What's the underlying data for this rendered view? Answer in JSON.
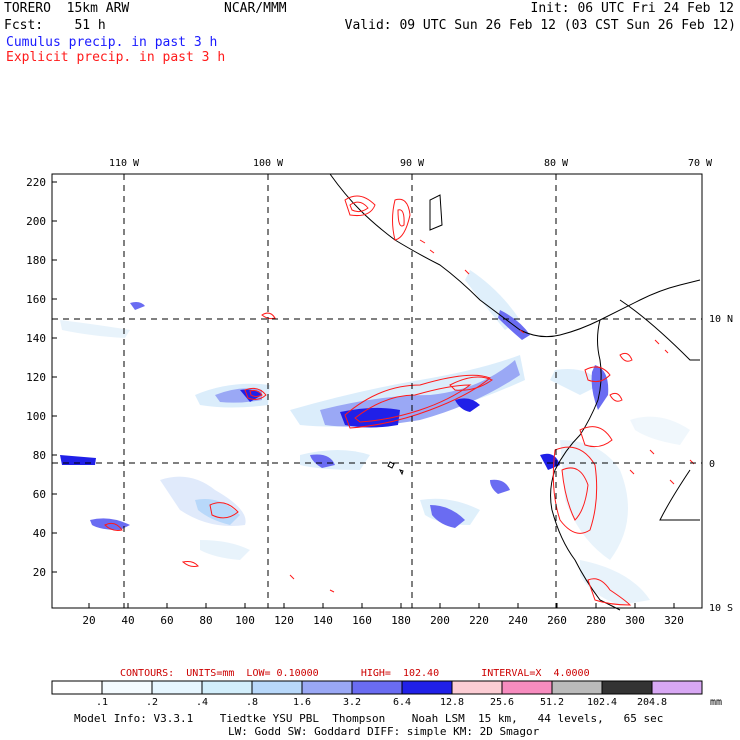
{
  "header": {
    "model": "TORERO  15km ARW",
    "org": "NCAR/MMM",
    "init": "Init: 06 UTC Fri 24 Feb 12",
    "fcst": "Fcst:    51 h",
    "valid": "Valid: 09 UTC Sun 26 Feb 12 (03 CST Sun 26 Feb 12)",
    "field1": "Cumulus precip. in past 3 h",
    "field2": "Explicit precip. in past 3 h"
  },
  "map": {
    "lon_labels": [
      "110 W",
      "100 W",
      "90 W",
      "80 W",
      "70 W"
    ],
    "lat_labels": [
      "10 N",
      "0",
      "10 S"
    ],
    "y_ticks": [
      "220",
      "200",
      "180",
      "160",
      "140",
      "120",
      "100",
      "80",
      "60",
      "40",
      "20"
    ],
    "x_ticks": [
      "20",
      "40",
      "60",
      "80",
      "100",
      "120",
      "140",
      "160",
      "180",
      "200",
      "220",
      "240",
      "260",
      "280",
      "300",
      "320"
    ]
  },
  "contours": {
    "text": "CONTOURS:  UNITS=mm  LOW= 0.10000       HIGH=  102.40       INTERVAL=X  4.0000"
  },
  "colorbar": {
    "labels": [
      ".1",
      ".2",
      ".4",
      ".8",
      "1.6",
      "3.2",
      "6.4",
      "12.8",
      "25.6",
      "51.2",
      "102.4",
      "204.8"
    ],
    "units": "mm",
    "colors": [
      "#ffffff",
      "#f4fbff",
      "#e6f6ff",
      "#d2eefb",
      "#b8d8fa",
      "#9aa8f5",
      "#6a6cf2",
      "#2020e8",
      "#fccdd4",
      "#f78cbf",
      "#bbbbbb",
      "#333333",
      "#d8a8f4"
    ]
  },
  "footer": {
    "line1": "Model Info: V3.3.1    Tiedtke YSU PBL  Thompson    Noah LSM  15 km,   44 levels,   65 sec",
    "line2": "LW: Godd SW: Goddard DIFF: simple KM: 2D Smagor"
  }
}
